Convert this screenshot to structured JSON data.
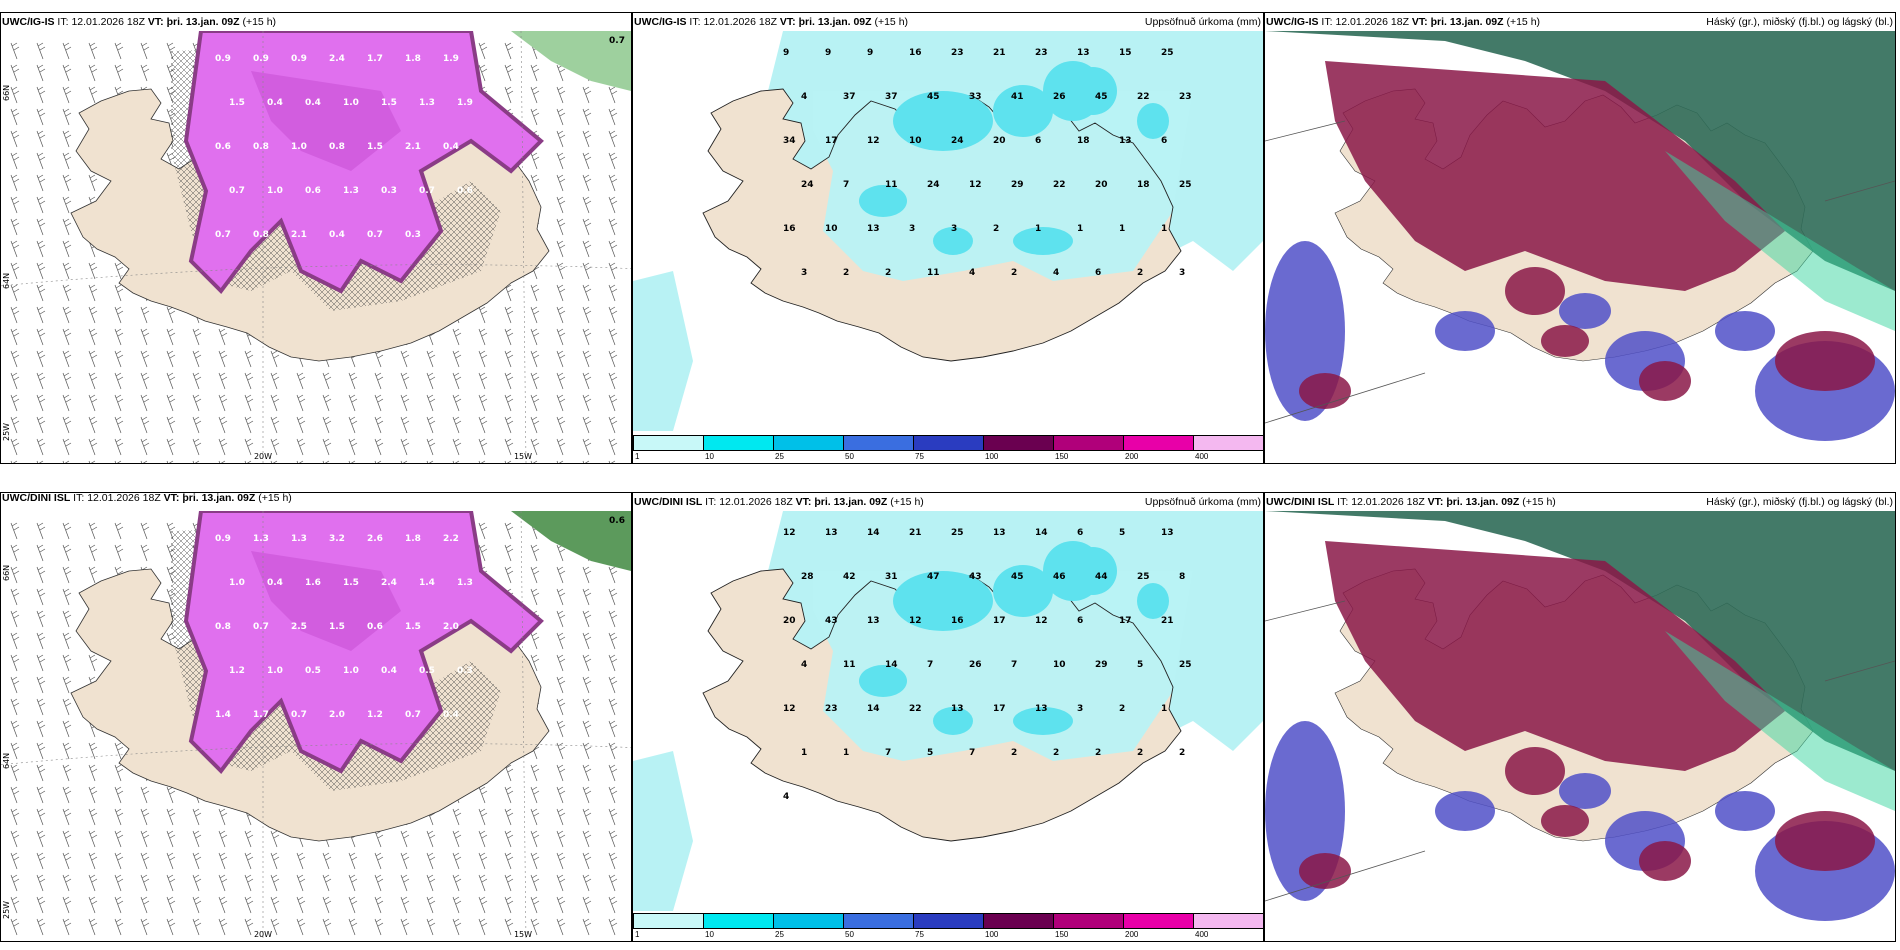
{
  "panels": [
    {
      "id": "p1",
      "model": "UWC/IG-IS",
      "it_label": "IT:",
      "it_value": "12.01.2026 18Z",
      "vt_label": "VT:",
      "vt_value": "þri. 13.jan. 09Z",
      "lead": "(+15 h)",
      "title_right": "",
      "kind": "wind",
      "axes": {
        "lon": [
          "20W",
          "15W"
        ],
        "lat": [
          "66N",
          "64N"
        ],
        "corner": "25W"
      },
      "values": [
        "0.9",
        "0.9",
        "0.9",
        "2.4",
        "1.7",
        "1.8",
        "1.9",
        "1.5",
        "0.4",
        "0.4",
        "1.0",
        "1.5",
        "1.3",
        "1.9",
        "0.6",
        "0.8",
        "1.0",
        "0.8",
        "1.5",
        "2.1",
        "0.4",
        "0.7",
        "1.0",
        "0.6",
        "1.3",
        "0.3",
        "0.7",
        "0.6",
        "0.7",
        "0.8",
        "2.1",
        "0.4",
        "0.7",
        "0.3"
      ],
      "top_corner": "0.7"
    },
    {
      "id": "p2",
      "model": "UWC/IG-IS",
      "it_label": "IT:",
      "it_value": "12.01.2026 18Z",
      "vt_label": "VT:",
      "vt_value": "þri. 13.jan. 09Z",
      "lead": "(+15 h)",
      "title_right": "Uppsöfnuð úrkoma (mm)",
      "kind": "precip",
      "values": [
        "9",
        "9",
        "9",
        "16",
        "23",
        "21",
        "23",
        "13",
        "15",
        "25",
        "4",
        "37",
        "37",
        "45",
        "33",
        "41",
        "26",
        "45",
        "22",
        "23",
        "34",
        "17",
        "12",
        "10",
        "24",
        "20",
        "6",
        "18",
        "13",
        "6",
        "24",
        "7",
        "11",
        "24",
        "12",
        "29",
        "22",
        "20",
        "18",
        "25",
        "16",
        "10",
        "13",
        "3",
        "3",
        "2",
        "1",
        "1",
        "1",
        "1",
        "3",
        "2",
        "2",
        "11",
        "4",
        "2",
        "4",
        "6",
        "2",
        "3"
      ]
    },
    {
      "id": "p3",
      "model": "UWC/IG-IS",
      "it_label": "IT:",
      "it_value": "12.01.2026 18Z",
      "vt_label": "VT:",
      "vt_value": "þri. 13.jan. 09Z",
      "lead": "(+15 h)",
      "title_right": "Háský (gr.), miðský (fj.bl.) og lágský (bl.)",
      "kind": "cloud"
    },
    {
      "id": "p4",
      "model": "UWC/DINI ISL",
      "it_label": "IT:",
      "it_value": "12.01.2026 18Z",
      "vt_label": "VT:",
      "vt_value": "þri. 13.jan. 09Z",
      "lead": "(+15 h)",
      "title_right": "",
      "kind": "wind",
      "axes": {
        "lon": [
          "20W",
          "15W"
        ],
        "lat": [
          "66N",
          "64N"
        ],
        "corner": "25W"
      },
      "values": [
        "0.9",
        "1.3",
        "1.3",
        "3.2",
        "2.6",
        "1.8",
        "2.2",
        "1.0",
        "0.4",
        "1.6",
        "1.5",
        "2.4",
        "1.4",
        "1.3",
        "0.8",
        "0.7",
        "2.5",
        "1.5",
        "0.6",
        "1.5",
        "2.0",
        "1.2",
        "1.0",
        "0.5",
        "1.0",
        "0.4",
        "0.5",
        "0.3",
        "1.4",
        "1.7",
        "0.7",
        "2.0",
        "1.2",
        "0.7",
        "0.4"
      ],
      "top_corner": "0.6"
    },
    {
      "id": "p5",
      "model": "UWC/DINI ISL",
      "it_label": "IT:",
      "it_value": "12.01.2026 18Z",
      "vt_label": "VT:",
      "vt_value": "þri. 13.jan. 09Z",
      "lead": "(+15 h)",
      "title_right": "Uppsöfnuð úrkoma (mm)",
      "kind": "precip",
      "values": [
        "12",
        "13",
        "14",
        "21",
        "25",
        "13",
        "14",
        "6",
        "5",
        "13",
        "28",
        "42",
        "31",
        "47",
        "43",
        "45",
        "46",
        "44",
        "25",
        "8",
        "20",
        "43",
        "13",
        "12",
        "16",
        "17",
        "12",
        "6",
        "17",
        "21",
        "4",
        "11",
        "14",
        "7",
        "26",
        "7",
        "10",
        "29",
        "5",
        "25",
        "12",
        "23",
        "14",
        "22",
        "13",
        "17",
        "13",
        "3",
        "2",
        "1",
        "1",
        "1",
        "7",
        "5",
        "7",
        "2",
        "2",
        "2",
        "2",
        "2",
        "4"
      ]
    },
    {
      "id": "p6",
      "model": "UWC/DINI ISL",
      "it_label": "IT:",
      "it_value": "12.01.2026 18Z",
      "vt_label": "VT:",
      "vt_value": "þri. 13.jan. 09Z",
      "lead": "(+15 h)",
      "title_right": "Háský (gr.), miðský (fj.bl.) og lágský (bl.)",
      "kind": "cloud"
    }
  ],
  "precip_legend": {
    "ticks": [
      "1",
      "10",
      "25",
      "50",
      "75",
      "100",
      "150",
      "200",
      "400"
    ],
    "colors": [
      "#c8f8f8",
      "#00e8f0",
      "#00c0e8",
      "#3a6ee0",
      "#2a3cc0",
      "#6a0050",
      "#b0007a",
      "#e800a8",
      "#f4b8f0"
    ]
  },
  "colors": {
    "land": "#f0e2d0",
    "precip_light": "#b8f2f4",
    "precip_mid": "#5ee2ee",
    "wind_magenta": "#e070ee",
    "wind_dark": "#8a3c86",
    "cloud_high": "#2f6b58",
    "cloud_mid": "#8a1848",
    "cloud_low": "#5050c8"
  }
}
